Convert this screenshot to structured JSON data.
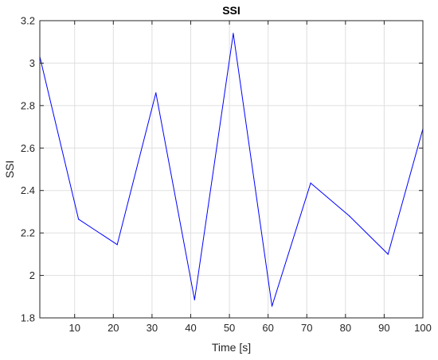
{
  "chart_data": {
    "type": "line",
    "title": "SSI",
    "xlabel": "Time [s]",
    "ylabel": "SSI",
    "xlim": [
      1,
      100
    ],
    "ylim": [
      1.8,
      3.2
    ],
    "grid": true,
    "xticks": [
      10,
      20,
      30,
      40,
      50,
      60,
      70,
      80,
      90,
      100
    ],
    "xtick_labels": [
      "10",
      "20",
      "30",
      "40",
      "50",
      "60",
      "70",
      "80",
      "90",
      "100"
    ],
    "yticks": [
      1.8,
      2,
      2.2,
      2.4,
      2.6,
      2.8,
      3,
      3.2
    ],
    "ytick_labels": [
      "1.8",
      "2",
      "2.2",
      "2.4",
      "2.6",
      "2.8",
      "3",
      "3.2"
    ],
    "series": [
      {
        "color": "#0000ff",
        "x": [
          1,
          11,
          21,
          31,
          41,
          51,
          61,
          71,
          81,
          91,
          100
        ],
        "y": [
          3.03,
          2.265,
          2.145,
          2.86,
          1.885,
          3.14,
          1.855,
          2.435,
          2.28,
          2.1,
          2.69
        ]
      }
    ]
  }
}
